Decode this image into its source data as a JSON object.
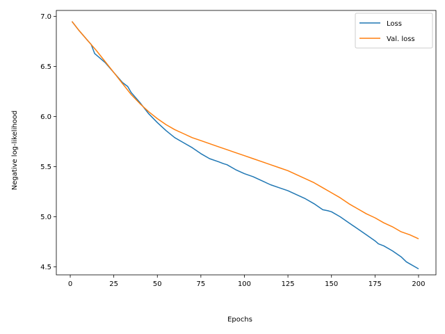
{
  "chart_data": {
    "type": "line",
    "title": "",
    "xlabel": "Epochs",
    "ylabel": "Negative log-likelihood",
    "xlim": [
      -8,
      210
    ],
    "ylim": [
      4.42,
      7.06
    ],
    "xticks": [
      0,
      25,
      50,
      75,
      100,
      125,
      150,
      175,
      200
    ],
    "yticks": [
      4.5,
      5.0,
      5.5,
      6.0,
      6.5,
      7.0
    ],
    "xtick_labels": [
      "0",
      "25",
      "50",
      "75",
      "100",
      "125",
      "150",
      "175",
      "200"
    ],
    "ytick_labels": [
      "4.5",
      "5.0",
      "5.5",
      "6.0",
      "6.5",
      "7.0"
    ],
    "grid": false,
    "legend_position": "top-right",
    "series": [
      {
        "name": "Loss",
        "color": "#1f77b4",
        "x": [
          1,
          5,
          10,
          12,
          14,
          16,
          20,
          25,
          27,
          30,
          33,
          35,
          40,
          45,
          50,
          55,
          60,
          65,
          70,
          75,
          80,
          85,
          88,
          90,
          95,
          100,
          105,
          110,
          115,
          120,
          125,
          130,
          135,
          140,
          145,
          148,
          150,
          155,
          160,
          165,
          170,
          175,
          177,
          180,
          185,
          190,
          193,
          195,
          200
        ],
        "values": [
          6.95,
          6.86,
          6.76,
          6.72,
          6.63,
          6.6,
          6.54,
          6.44,
          6.4,
          6.34,
          6.3,
          6.24,
          6.14,
          6.03,
          5.94,
          5.86,
          5.79,
          5.74,
          5.69,
          5.63,
          5.58,
          5.55,
          5.53,
          5.52,
          5.47,
          5.43,
          5.4,
          5.36,
          5.32,
          5.29,
          5.26,
          5.22,
          5.18,
          5.13,
          5.07,
          5.06,
          5.05,
          5.0,
          4.94,
          4.88,
          4.82,
          4.76,
          4.73,
          4.71,
          4.66,
          4.6,
          4.55,
          4.53,
          4.48
        ]
      },
      {
        "name": "Val. loss",
        "color": "#ff7f0e",
        "x": [
          1,
          5,
          10,
          15,
          20,
          25,
          30,
          35,
          40,
          45,
          50,
          55,
          60,
          65,
          70,
          75,
          80,
          85,
          90,
          95,
          100,
          105,
          110,
          115,
          120,
          125,
          130,
          135,
          140,
          145,
          150,
          155,
          160,
          165,
          170,
          175,
          180,
          185,
          190,
          195,
          200
        ],
        "values": [
          6.95,
          6.86,
          6.76,
          6.66,
          6.55,
          6.44,
          6.33,
          6.22,
          6.13,
          6.05,
          5.98,
          5.92,
          5.87,
          5.83,
          5.79,
          5.76,
          5.73,
          5.7,
          5.67,
          5.64,
          5.61,
          5.58,
          5.55,
          5.52,
          5.49,
          5.46,
          5.42,
          5.38,
          5.34,
          5.29,
          5.24,
          5.19,
          5.13,
          5.08,
          5.03,
          4.99,
          4.94,
          4.9,
          4.85,
          4.82,
          4.78
        ]
      }
    ]
  }
}
